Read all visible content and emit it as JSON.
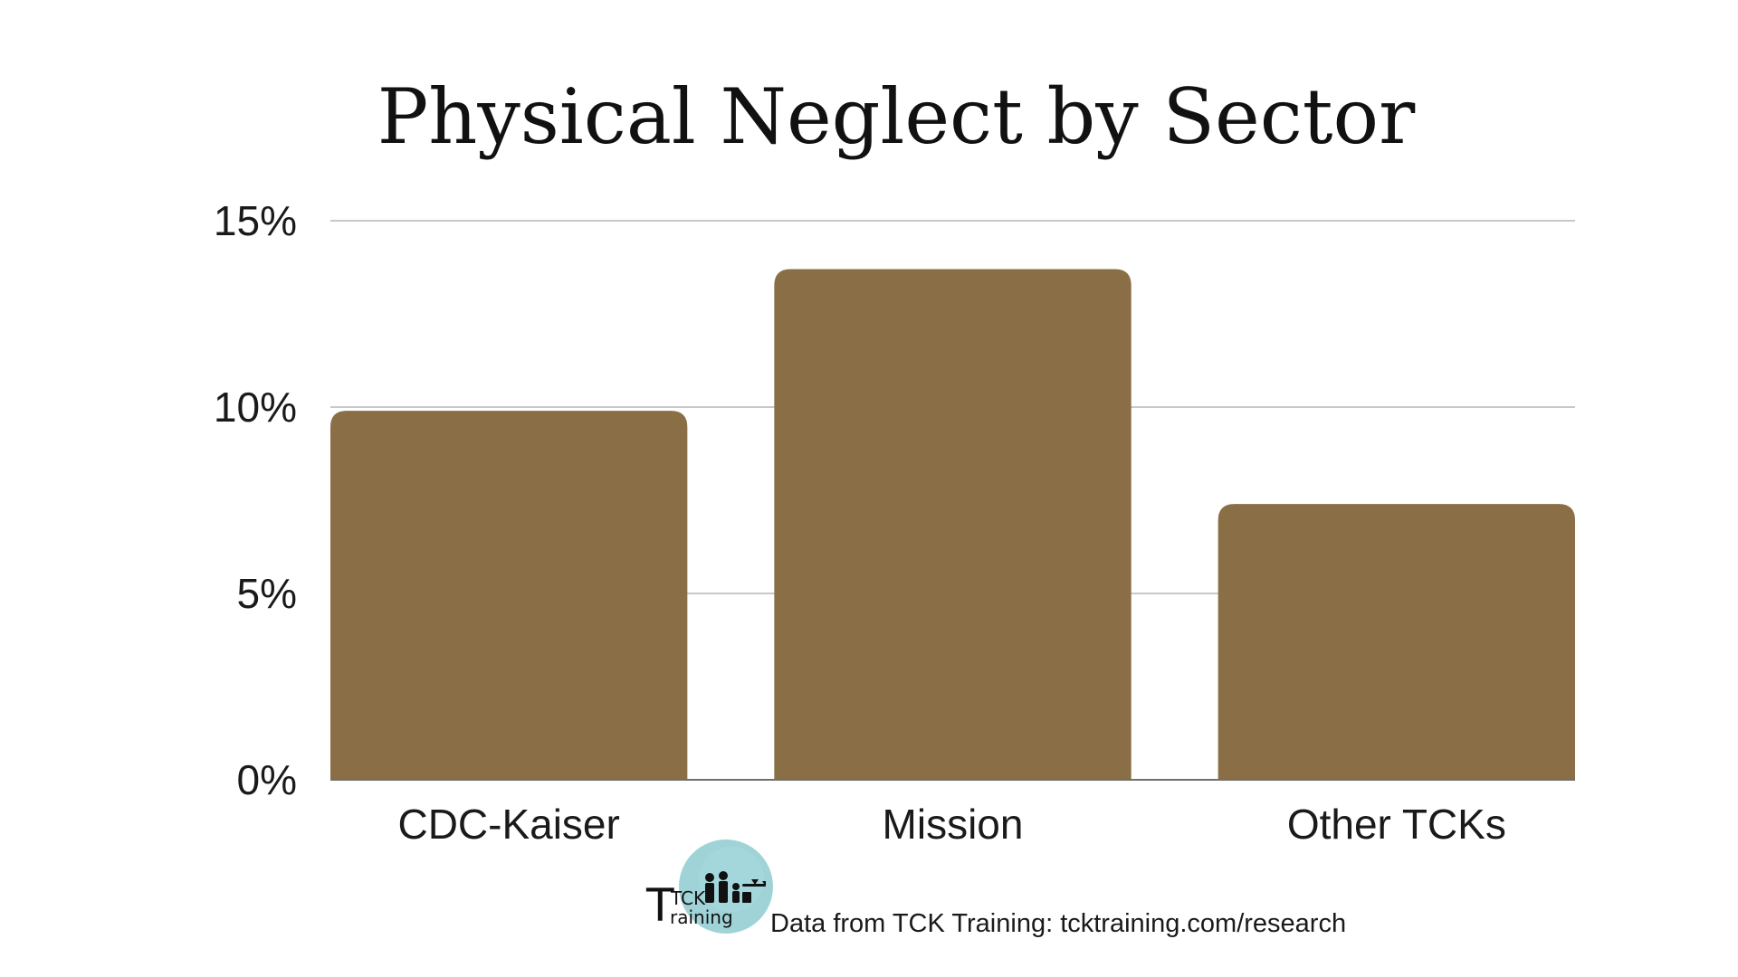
{
  "chart_data": {
    "type": "bar",
    "title": "Physical Neglect by Sector",
    "categories": [
      "CDC-Kaiser",
      "Mission",
      "Other TCKs"
    ],
    "values": [
      9.9,
      13.7,
      7.4
    ],
    "ylim": [
      0,
      15
    ],
    "yticks": [
      0,
      5,
      10,
      15
    ],
    "ytick_labels": [
      "0%",
      "5%",
      "10%",
      "15%"
    ],
    "xlabel": "",
    "ylabel": "",
    "grid": true,
    "legend": "none",
    "bar_color": "#8a6e45",
    "grid_color": "#c8c8c8"
  },
  "footer": {
    "source": "Data from TCK Training: tcktraining.com/research",
    "logo": {
      "tck": "TCK",
      "training": "raining",
      "icon": "family-with-airplane-logo"
    }
  }
}
